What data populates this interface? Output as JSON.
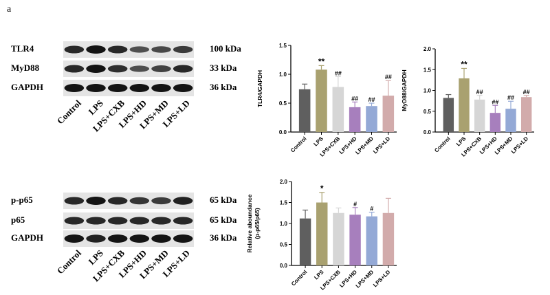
{
  "panel_letter": "a",
  "blots": [
    {
      "rows": [
        {
          "label": "TLR4",
          "kda": "100 kDa",
          "band_intensity": [
            0.85,
            1.0,
            0.85,
            0.55,
            0.6,
            0.7
          ]
        },
        {
          "label": "MyD88",
          "kda": "33 kDa",
          "band_intensity": [
            0.85,
            1.0,
            0.8,
            0.55,
            0.65,
            0.85
          ]
        },
        {
          "label": "GAPDH",
          "kda": "36 kDa",
          "band_intensity": [
            1.0,
            1.0,
            1.0,
            1.0,
            1.0,
            1.0
          ]
        }
      ],
      "lanes": [
        "Control",
        "LPS",
        "LPS+CXB",
        "LPS+HD",
        "LPS+MD",
        "LPS+LD"
      ]
    },
    {
      "rows": [
        {
          "label": "p-p65",
          "kda": "65 kDa",
          "band_intensity": [
            0.85,
            1.0,
            0.85,
            0.75,
            0.7,
            0.9
          ]
        },
        {
          "label": "p65",
          "kda": "65 kDa",
          "band_intensity": [
            0.85,
            0.85,
            0.85,
            0.85,
            0.85,
            0.85
          ]
        },
        {
          "label": "GAPDH",
          "kda": "36 kDa",
          "band_intensity": [
            1.0,
            0.9,
            1.0,
            1.0,
            1.0,
            1.0
          ]
        }
      ],
      "lanes": [
        "Control",
        "LPS",
        "LPS+CXB",
        "LPS+HD",
        "LPS+MD",
        "LPS+LD"
      ]
    }
  ],
  "chart_data": [
    {
      "type": "bar",
      "ylabel": "TLR4/GAPDH",
      "ylabel2": "",
      "ylim": [
        0,
        1.5
      ],
      "yticks": [
        "0.0",
        "0.5",
        "1.0",
        "1.5"
      ],
      "categories": [
        "Control",
        "LPS",
        "LPS+CXB",
        "LPS+HD",
        "LPS+MD",
        "LPS+LD"
      ],
      "values": [
        0.74,
        1.08,
        0.78,
        0.43,
        0.45,
        0.63
      ],
      "errors": [
        0.09,
        0.07,
        0.18,
        0.09,
        0.05,
        0.26
      ],
      "annotations": [
        "",
        "**",
        "##",
        "##",
        "##",
        "##"
      ],
      "colors": [
        "#5f5f5f",
        "#a9a170",
        "#d6d6d6",
        "#a77fbd",
        "#94a9d6",
        "#d2abab"
      ]
    },
    {
      "type": "bar",
      "ylabel": "MyD88/GAPDH",
      "ylabel2": "",
      "ylim": [
        0,
        2.0
      ],
      "yticks": [
        "0.0",
        "0.5",
        "1.0",
        "1.5",
        "2.0"
      ],
      "categories": [
        "Control",
        "LPS",
        "LPS+CXB",
        "LPS+HD",
        "LPS+MD",
        "LPS+LD"
      ],
      "values": [
        0.82,
        1.29,
        0.78,
        0.46,
        0.56,
        0.84
      ],
      "errors": [
        0.08,
        0.24,
        0.1,
        0.18,
        0.18,
        0.04
      ],
      "annotations": [
        "",
        "**",
        "##",
        "##",
        "##",
        "##"
      ],
      "colors": [
        "#5f5f5f",
        "#a9a170",
        "#d6d6d6",
        "#a77fbd",
        "#94a9d6",
        "#d2abab"
      ]
    },
    {
      "type": "bar",
      "ylabel": "Relative aboundance",
      "ylabel2": "(p-p65/p65)",
      "ylim": [
        0,
        2.0
      ],
      "yticks": [
        "0.0",
        "0.5",
        "1.0",
        "1.5",
        "2.0"
      ],
      "categories": [
        "Control",
        "LPS",
        "LPS+CXB",
        "LPS+HD",
        "LPS+MD",
        "LPS+LD"
      ],
      "values": [
        1.12,
        1.5,
        1.25,
        1.21,
        1.17,
        1.25
      ],
      "errors": [
        0.2,
        0.24,
        0.12,
        0.17,
        0.1,
        0.35
      ],
      "annotations": [
        "",
        "*",
        "",
        "#",
        "#",
        ""
      ],
      "colors": [
        "#5f5f5f",
        "#a9a170",
        "#d6d6d6",
        "#a77fbd",
        "#94a9d6",
        "#d2abab"
      ]
    }
  ]
}
